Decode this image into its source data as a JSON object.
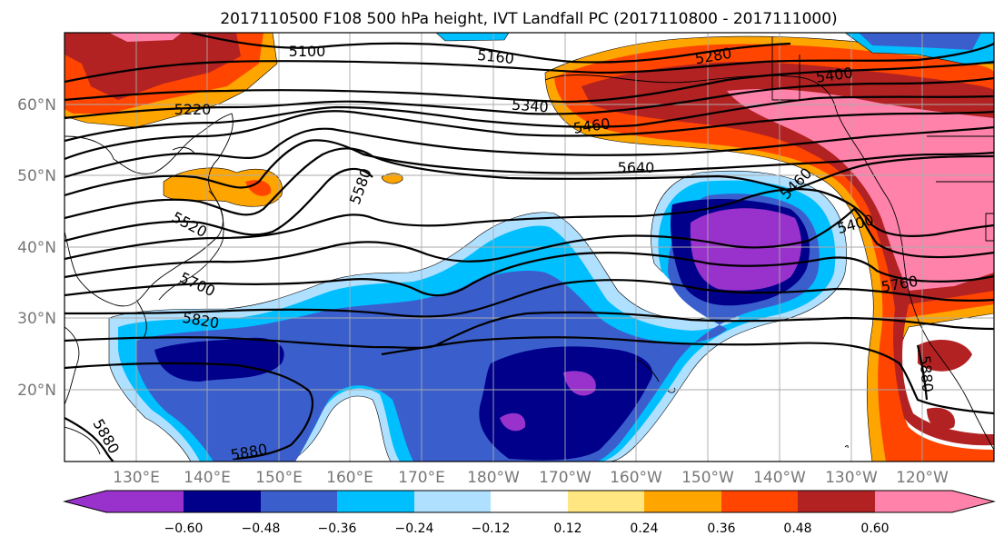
{
  "title": "2017110500 F108 500 hPa height, IVT Landfall PC (2017110800 - 2017111000)",
  "lon_ticks": [
    "130°E",
    "140°E",
    "150°E",
    "160°E",
    "170°E",
    "180°W",
    "170°W",
    "160°W",
    "150°W",
    "140°W",
    "130°W",
    "120°W"
  ],
  "lat_ticks": [
    "60°N",
    "50°N",
    "40°N",
    "30°N",
    "20°N"
  ],
  "colorbar": {
    "ticks": [
      "−0.60",
      "−0.48",
      "−0.36",
      "−0.24",
      "−0.12",
      "0.12",
      "0.24",
      "0.36",
      "0.48",
      "0.60"
    ],
    "colors": [
      "#9932cc",
      "#00008b",
      "#3a5fcd",
      "#00bfff",
      "#b0e0ff",
      "#ffffff",
      "#ffe680",
      "#ffa500",
      "#ff4500",
      "#b22222",
      "#ff82ab"
    ]
  },
  "contour_labels": [
    {
      "text": "5100"
    },
    {
      "text": "5160"
    },
    {
      "text": "5280"
    },
    {
      "text": "5400"
    },
    {
      "text": "5220"
    },
    {
      "text": "5340"
    },
    {
      "text": "5460"
    },
    {
      "text": "5580"
    },
    {
      "text": "5640"
    },
    {
      "text": "5460"
    },
    {
      "text": "5400"
    },
    {
      "text": "5520"
    },
    {
      "text": "5700"
    },
    {
      "text": "5760"
    },
    {
      "text": "5820"
    },
    {
      "text": "5880"
    },
    {
      "text": "5880"
    },
    {
      "text": "5880"
    }
  ]
}
